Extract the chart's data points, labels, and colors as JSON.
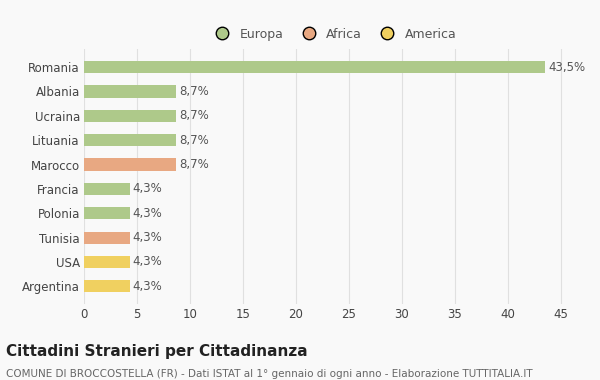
{
  "countries": [
    "Romania",
    "Albania",
    "Ucraina",
    "Lituania",
    "Marocco",
    "Francia",
    "Polonia",
    "Tunisia",
    "USA",
    "Argentina"
  ],
  "values": [
    43.5,
    8.7,
    8.7,
    8.7,
    8.7,
    4.3,
    4.3,
    4.3,
    4.3,
    4.3
  ],
  "labels": [
    "43,5%",
    "8,7%",
    "8,7%",
    "8,7%",
    "8,7%",
    "4,3%",
    "4,3%",
    "4,3%",
    "4,3%",
    "4,3%"
  ],
  "colors": [
    "#aec98a",
    "#aec98a",
    "#aec98a",
    "#aec98a",
    "#e8a882",
    "#aec98a",
    "#aec98a",
    "#e8a882",
    "#f0d060",
    "#f0d060"
  ],
  "legend_labels": [
    "Europa",
    "Africa",
    "America"
  ],
  "legend_colors": [
    "#aec98a",
    "#e8a882",
    "#f0d060"
  ],
  "title": "Cittadini Stranieri per Cittadinanza",
  "subtitle": "COMUNE DI BROCCOSTELLA (FR) - Dati ISTAT al 1° gennaio di ogni anno - Elaborazione TUTTITALIA.IT",
  "xlim": [
    0,
    47
  ],
  "xticks": [
    0,
    5,
    10,
    15,
    20,
    25,
    30,
    35,
    40,
    45
  ],
  "background_color": "#f9f9f9",
  "grid_color": "#e0e0e0",
  "bar_height": 0.5,
  "title_fontsize": 11,
  "subtitle_fontsize": 7.5,
  "label_fontsize": 8.5,
  "tick_fontsize": 8.5,
  "legend_fontsize": 9
}
